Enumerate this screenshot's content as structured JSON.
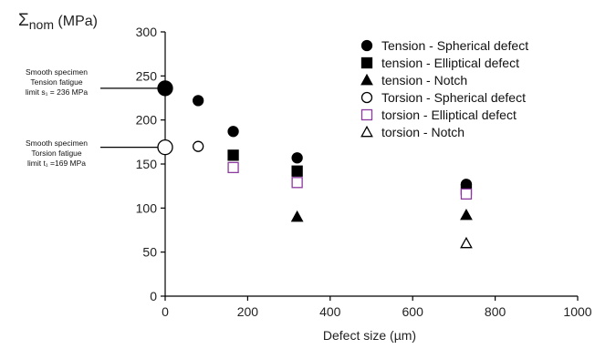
{
  "chart_data": {
    "type": "scatter",
    "ylabel": {
      "main": "Σ",
      "sub": "nom",
      "unit": " (MPa)"
    },
    "xlabel": "Defect size (µm)",
    "xlim": [
      0,
      1000
    ],
    "ylim": [
      0,
      300
    ],
    "xticks": [
      "0",
      "200",
      "400",
      "600",
      "800",
      "1000"
    ],
    "yticks": [
      "0",
      "50",
      "100",
      "150",
      "200",
      "250",
      "300"
    ],
    "grid": false,
    "legend_position": "top-right",
    "series": [
      {
        "name": "Tension - Spherical defect",
        "marker": "circle",
        "filled": true,
        "color": "#000000",
        "points": [
          [
            80,
            222
          ],
          [
            165,
            187
          ],
          [
            320,
            157
          ],
          [
            730,
            127
          ]
        ]
      },
      {
        "name": "tension - Elliptical defect",
        "marker": "square",
        "filled": true,
        "color": "#000000",
        "points": [
          [
            165,
            160
          ],
          [
            320,
            142
          ],
          [
            730,
            121
          ]
        ]
      },
      {
        "name": "tension - Notch",
        "marker": "triangle",
        "filled": true,
        "color": "#000000",
        "points": [
          [
            320,
            90
          ],
          [
            730,
            92
          ]
        ]
      },
      {
        "name": "Torsion - Spherical defect",
        "marker": "circle",
        "filled": false,
        "color": "#000000",
        "points": [
          [
            80,
            170
          ]
        ]
      },
      {
        "name": "torsion - Elliptical defect",
        "marker": "square",
        "filled": false,
        "color": "#8b3a9e",
        "points": [
          [
            165,
            146
          ],
          [
            320,
            129
          ],
          [
            730,
            116
          ]
        ]
      },
      {
        "name": "torsion - Notch",
        "marker": "triangle",
        "filled": false,
        "color": "#000000",
        "points": [
          [
            730,
            60
          ]
        ]
      }
    ],
    "reference_points": [
      {
        "id": "tension",
        "x": 0,
        "y": 236,
        "filled": true
      },
      {
        "id": "torsion",
        "x": 0,
        "y": 169,
        "filled": false
      }
    ],
    "annotations": [
      {
        "id": "tension",
        "lines": [
          "Smooth specimen",
          "Tension fatigue",
          "limit s₁ = 236 MPa"
        ],
        "target_y": 236
      },
      {
        "id": "torsion",
        "lines": [
          "Smooth specimen",
          "Torsion fatigue",
          "limit t₁ =169 MPa"
        ],
        "target_y": 169
      }
    ]
  }
}
